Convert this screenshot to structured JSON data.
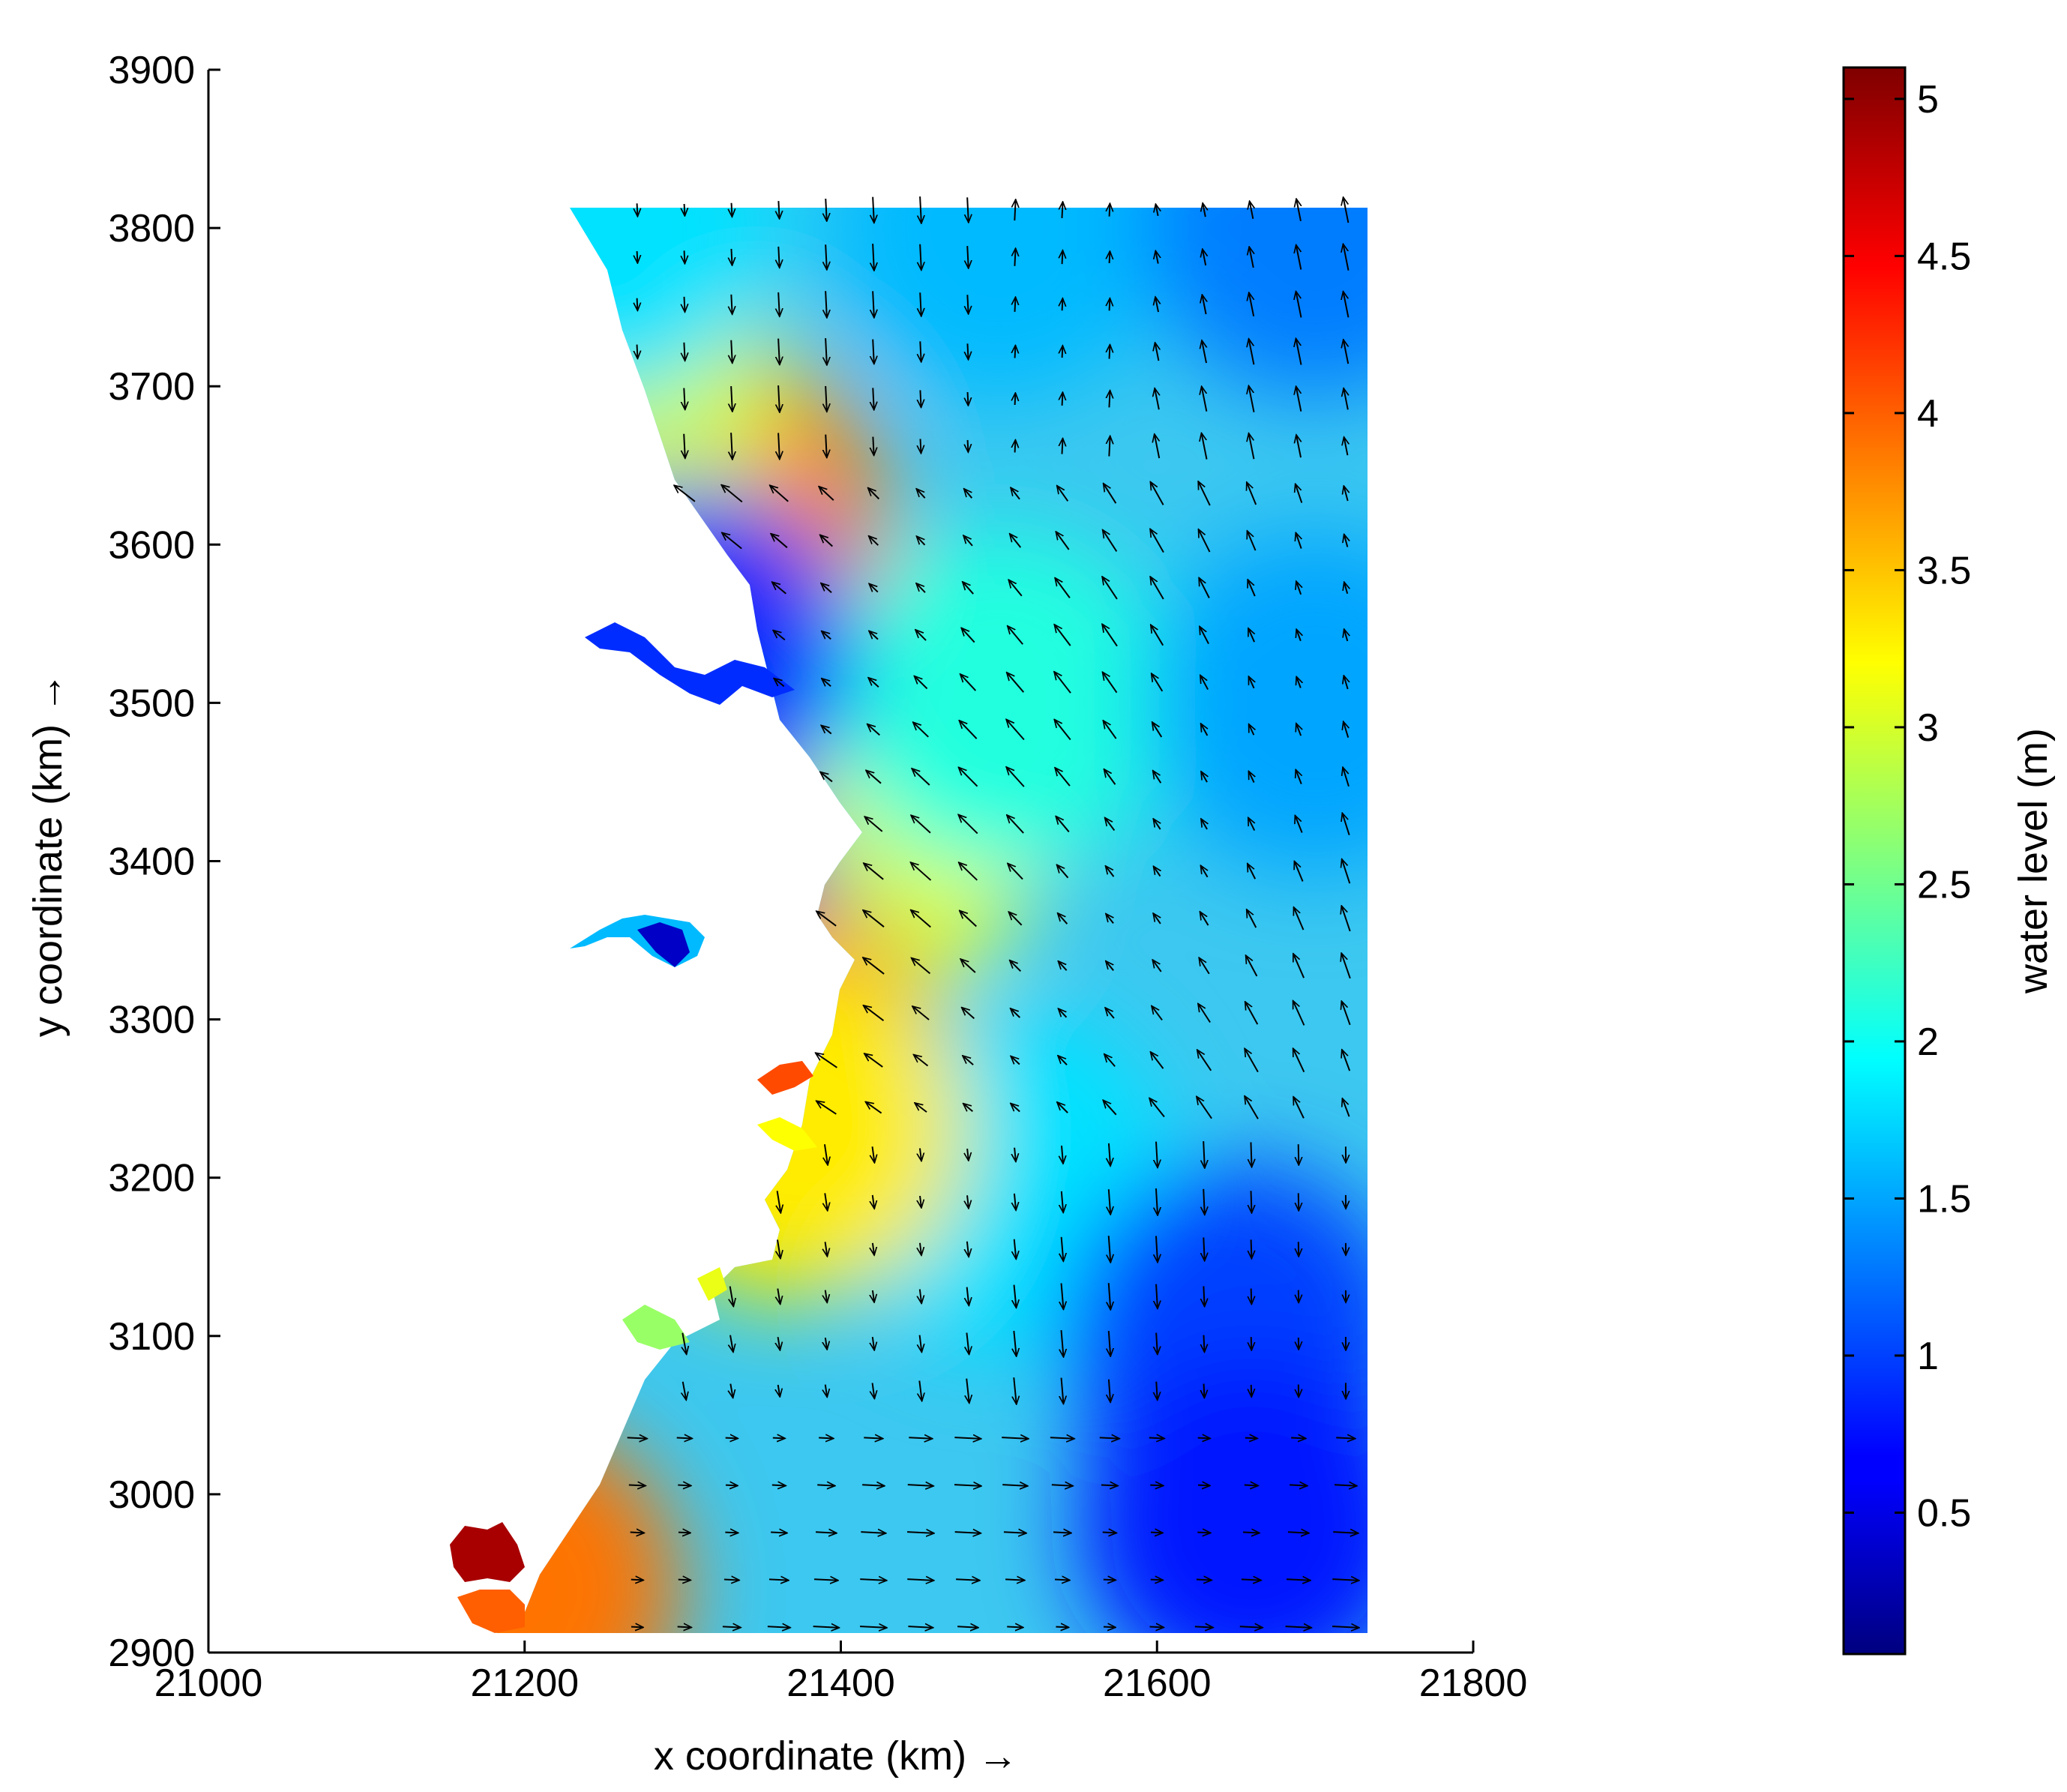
{
  "chart_data": {
    "type": "heatmap",
    "subtype": "filled contour map with velocity vector field",
    "xlabel": "x coordinate (km) →",
    "ylabel": "y coordinate (km) →",
    "xlim": [
      21000,
      21800
    ],
    "ylim": [
      2900,
      3900
    ],
    "x_ticks": [
      "21000",
      "21200",
      "21400",
      "21600",
      "21800"
    ],
    "y_ticks": [
      "2900",
      "3000",
      "3100",
      "3200",
      "3300",
      "3400",
      "3500",
      "3600",
      "3700",
      "3800",
      "3900"
    ],
    "domain_extent": {
      "x": [
        21230,
        21730
      ],
      "y": [
        2920,
        3810
      ]
    },
    "grid": false,
    "colorbar": {
      "label": "water level (m)",
      "range": [
        0.05,
        5.1
      ],
      "tick_values": [
        0.5,
        1,
        1.5,
        2,
        2.5,
        3,
        3.5,
        4,
        4.5,
        5
      ],
      "tick_labels": [
        "0.5",
        "1",
        "1.5",
        "2",
        "2.5",
        "3",
        "3.5",
        "4",
        "4.5",
        "5"
      ],
      "colormap": "jet",
      "placement": "right"
    },
    "water_level_field": {
      "description_values": [
        {
          "x": 21320,
          "y": 3620,
          "level": 3.8
        },
        {
          "x": 21250,
          "y": 3700,
          "level": 3.0
        },
        {
          "x": 21250,
          "y": 3800,
          "level": 1.8
        },
        {
          "x": 21500,
          "y": 3800,
          "level": 1.6
        },
        {
          "x": 21700,
          "y": 3800,
          "level": 1.3
        },
        {
          "x": 21420,
          "y": 3420,
          "level": 3.1
        },
        {
          "x": 21500,
          "y": 3500,
          "level": 2.1
        },
        {
          "x": 21700,
          "y": 3500,
          "level": 1.5
        },
        {
          "x": 21350,
          "y": 3300,
          "level": 2.7
        },
        {
          "x": 21500,
          "y": 3200,
          "level": 1.8
        },
        {
          "x": 21650,
          "y": 3100,
          "level": 1.0
        },
        {
          "x": 21660,
          "y": 2980,
          "level": 0.8
        },
        {
          "x": 21190,
          "y": 2940,
          "level": 3.9
        },
        {
          "x": 21160,
          "y": 2960,
          "level": 4.8
        },
        {
          "x": 21290,
          "y": 3350,
          "level": 0.6
        },
        {
          "x": 21300,
          "y": 3530,
          "level": 0.9
        },
        {
          "x": 21360,
          "y": 3265,
          "level": 4.0
        },
        {
          "x": 21370,
          "y": 3230,
          "level": 3.3
        }
      ]
    },
    "vector_field": {
      "quantity": "depth-averaged flow velocity",
      "pattern": [
        {
          "region": "north-east",
          "direction": "north / north-west"
        },
        {
          "region": "centre",
          "direction": "north-west, towards coast"
        },
        {
          "region": "north-west near 3600",
          "direction": "west, converging on bay"
        },
        {
          "region": "south",
          "direction": "east"
        },
        {
          "region": "south-centre",
          "direction": "south"
        }
      ]
    }
  }
}
